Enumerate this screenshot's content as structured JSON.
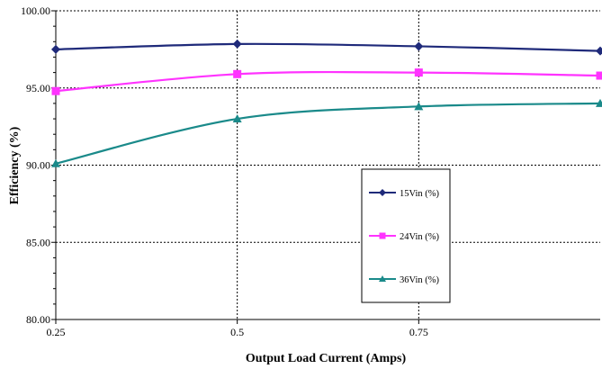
{
  "chart_data": {
    "type": "line",
    "xlabel": "Output Load Current (Amps)",
    "ylabel": "Efficiency (%)",
    "xlim": [
      0.25,
      1.0
    ],
    "ylim": [
      80,
      100
    ],
    "x_ticks": [
      "0.25",
      "0.5",
      "0.75"
    ],
    "y_ticks": [
      "80.00",
      "85.00",
      "90.00",
      "95.00",
      "100.00"
    ],
    "x": [
      0.25,
      0.5,
      0.75,
      1.0
    ],
    "grid": true,
    "legend_position": "right",
    "series": [
      {
        "name": "15Vin (%)",
        "values": [
          97.5,
          97.85,
          97.7,
          97.4
        ],
        "color": "#1f2a7a",
        "marker": "diamond"
      },
      {
        "name": "24Vin (%)",
        "values": [
          94.8,
          95.9,
          96.0,
          95.8
        ],
        "color": "#ff33ff",
        "marker": "square"
      },
      {
        "name": "36Vin (%)",
        "values": [
          90.1,
          93.0,
          93.8,
          94.0
        ],
        "color": "#1a8a8a",
        "marker": "triangle"
      }
    ]
  }
}
